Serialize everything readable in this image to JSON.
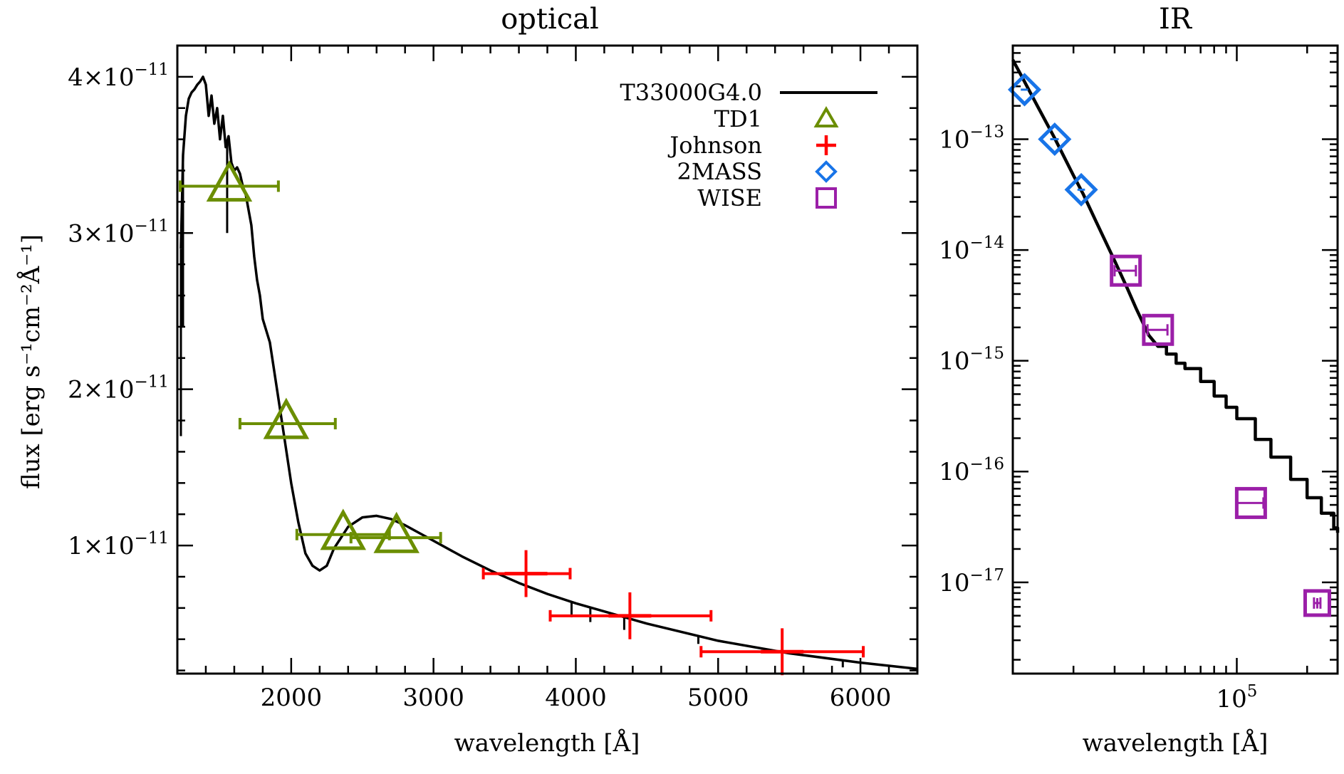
{
  "colors": {
    "model": "#000000",
    "TD1": "#6b8e00",
    "Johnson": "#ff0000",
    "2MASS": "#1874e8",
    "WISE": "#9b1fa8"
  },
  "legend": {
    "placement": "top-right",
    "entries": [
      {
        "label": "T33000G4.0",
        "marker": "line"
      },
      {
        "label": "TD1",
        "marker": "triangle"
      },
      {
        "label": "Johnson",
        "marker": "plus"
      },
      {
        "label": "2MASS",
        "marker": "diamond"
      },
      {
        "label": "WISE",
        "marker": "square"
      }
    ]
  },
  "chart_data": [
    {
      "type": "scatter",
      "title": "optical",
      "xlabel": "wavelength [Å]",
      "ylabel": "flux [erg s⁻¹cm⁻²Å⁻¹]",
      "xlim": [
        1200,
        6400
      ],
      "ylim": [
        1.8e-12,
        4.2e-11
      ],
      "x_scale": "linear",
      "y_scale": "linear",
      "x_ticks": [
        {
          "value": 2000,
          "label": "2000"
        },
        {
          "value": 3000,
          "label": "3000"
        },
        {
          "value": 4000,
          "label": "4000"
        },
        {
          "value": 5000,
          "label": "5000"
        },
        {
          "value": 6000,
          "label": "6000"
        }
      ],
      "y_ticks": [
        {
          "value": 1e-11,
          "mant": "1×10",
          "exp": "−11"
        },
        {
          "value": 2e-11,
          "mant": "2×10",
          "exp": "−11"
        },
        {
          "value": 3e-11,
          "mant": "3×10",
          "exp": "−11"
        },
        {
          "value": 4e-11,
          "mant": "4×10",
          "exp": "−11"
        }
      ],
      "model_curve": {
        "name": "T33000G4.0",
        "x": [
          1225,
          1240,
          1260,
          1280,
          1300,
          1320,
          1340,
          1360,
          1380,
          1400,
          1420,
          1440,
          1460,
          1480,
          1500,
          1520,
          1540,
          1560,
          1580,
          1600,
          1620,
          1640,
          1660,
          1680,
          1700,
          1720,
          1740,
          1760,
          1780,
          1800,
          1850,
          1900,
          1950,
          2000,
          2050,
          2100,
          2150,
          2200,
          2250,
          2300,
          2400,
          2500,
          2600,
          2700,
          2800,
          3000,
          3200,
          3400,
          3600,
          3800,
          4000,
          4500,
          5000,
          5500,
          6000,
          6400
        ],
        "y": [
          2.9e-11,
          3.5e-11,
          3.75e-11,
          3.86e-11,
          3.9e-11,
          3.92e-11,
          3.95e-11,
          3.97e-11,
          4e-11,
          3.95e-11,
          3.75e-11,
          3.88e-11,
          3.7e-11,
          3.8e-11,
          3.6e-11,
          3.75e-11,
          3.55e-11,
          3.62e-11,
          3.45e-11,
          3.4e-11,
          3.42e-11,
          3.38e-11,
          3.3e-11,
          3.25e-11,
          3.15e-11,
          3.05e-11,
          2.85e-11,
          2.7e-11,
          2.6e-11,
          2.45e-11,
          2.3e-11,
          2e-11,
          1.7e-11,
          1.4e-11,
          1.15e-11,
          9.5e-12,
          8.7e-12,
          8.4e-12,
          8.7e-12,
          9.8e-12,
          1.12e-11,
          1.18e-11,
          1.19e-11,
          1.17e-11,
          1.13e-11,
          1.03e-11,
          9.3e-12,
          8.4e-12,
          7.6e-12,
          6.9e-12,
          6.3e-12,
          5e-12,
          3.9e-12,
          3.1e-12,
          2.5e-12,
          2.1e-12
        ]
      },
      "absorption_lines": [
        {
          "x": 1225,
          "y": 1.7e-11
        },
        {
          "x": 1240,
          "y": 2.4e-11
        },
        {
          "x": 1550,
          "y": 3e-11
        },
        {
          "x": 3970,
          "y": 5.4e-12
        },
        {
          "x": 4102,
          "y": 5.1e-12
        },
        {
          "x": 4340,
          "y": 4.6e-12
        },
        {
          "x": 4861,
          "y": 3.7e-12
        },
        {
          "x": 5876,
          "y": 2.2e-12
        }
      ],
      "series": [
        {
          "name": "TD1",
          "marker": "triangle",
          "points": [
            {
              "x": 1565,
              "y": 3.3e-11,
              "xerr": [
                1220,
                1910
              ]
            },
            {
              "x": 1965,
              "y": 1.78e-11,
              "xerr": [
                1640,
                2310
              ]
            },
            {
              "x": 2365,
              "y": 1.07e-11,
              "xerr": [
                2040,
                2690
              ]
            },
            {
              "x": 2740,
              "y": 1.05e-11,
              "xerr": [
                2420,
                3050
              ]
            }
          ]
        },
        {
          "name": "Johnson",
          "marker": "plus",
          "points": [
            {
              "x": 3650,
              "y": 8.2e-12,
              "xerr": [
                3350,
                3960
              ],
              "yerr": [
                6.7e-12,
                9.7e-12
              ]
            },
            {
              "x": 4380,
              "y": 5.5e-12,
              "xerr": [
                3820,
                4950
              ],
              "yerr": [
                4e-12,
                7e-12
              ]
            },
            {
              "x": 5450,
              "y": 3.2e-12,
              "xerr": [
                4880,
                6020
              ],
              "yerr": [
                1.7e-12,
                4.7e-12
              ]
            }
          ]
        }
      ]
    },
    {
      "type": "scatter",
      "title": "IR",
      "xlabel": "wavelength [Å]",
      "ylabel": "",
      "xlim": [
        11000,
        270000
      ],
      "ylim": [
        1.5e-18,
        7e-13
      ],
      "x_scale": "log",
      "y_scale": "log",
      "x_ticks": [
        {
          "value": 100000,
          "mant": "10",
          "exp": "5"
        }
      ],
      "x_minor_ticks": [
        20000,
        30000,
        40000,
        50000,
        60000,
        70000,
        80000,
        90000,
        200000
      ],
      "y_ticks": [
        {
          "value": 1e-13,
          "mant": "10",
          "exp": "−13"
        },
        {
          "value": 1e-14,
          "mant": "10",
          "exp": "−14"
        },
        {
          "value": 1e-15,
          "mant": "10",
          "exp": "−15"
        },
        {
          "value": 1e-16,
          "mant": "10",
          "exp": "−16"
        },
        {
          "value": 1e-17,
          "mant": "10",
          "exp": "−17"
        }
      ],
      "model_curve": {
        "name": "T33000G4.0",
        "x": [
          11000,
          12000,
          14000,
          16500,
          20000,
          22000,
          25000,
          30000,
          34000,
          37000,
          42000,
          46000,
          50000,
          55000,
          60000,
          70000,
          80000,
          90000,
          100000,
          120000,
          140000,
          170000,
          200000,
          230000,
          260000,
          270000
        ],
        "y": [
          5.2e-13,
          3.7e-13,
          2e-13,
          1.05e-13,
          4.7e-14,
          3.2e-14,
          1.8e-14,
          8e-15,
          4.5e-15,
          3e-15,
          1.7e-15,
          1.35e-15,
          1.15e-15,
          9.5e-16,
          8.5e-16,
          6.5e-16,
          4.8e-16,
          3.8e-16,
          3e-16,
          1.95e-16,
          1.35e-16,
          8.5e-17,
          5.8e-17,
          4.2e-17,
          3.1e-17,
          2.8e-17
        ]
      },
      "series": [
        {
          "name": "2MASS",
          "marker": "diamond",
          "points": [
            {
              "x": 12350,
              "y": 2.8e-13,
              "xerr": [
                11900,
                12800
              ]
            },
            {
              "x": 16620,
              "y": 1e-13,
              "xerr": [
                15900,
                17300
              ]
            },
            {
              "x": 21590,
              "y": 3.5e-14,
              "xerr": [
                20800,
                22400
              ]
            }
          ]
        },
        {
          "name": "WISE",
          "marker": "square",
          "points": [
            {
              "x": 33500,
              "y": 6.5e-15,
              "xerr": [
                30000,
                37000
              ]
            },
            {
              "x": 46000,
              "y": 1.9e-15,
              "xerr": [
                41500,
                50500
              ]
            },
            {
              "x": 115000,
              "y": 5.2e-17,
              "xerr": [
                100000,
                130000
              ]
            },
            {
              "x": 221000,
              "y": 6.5e-18,
              "xerr": [
                214000,
                228000
              ],
              "yerr": [
                5.8e-18,
                7.2e-18
              ]
            }
          ]
        }
      ]
    }
  ]
}
